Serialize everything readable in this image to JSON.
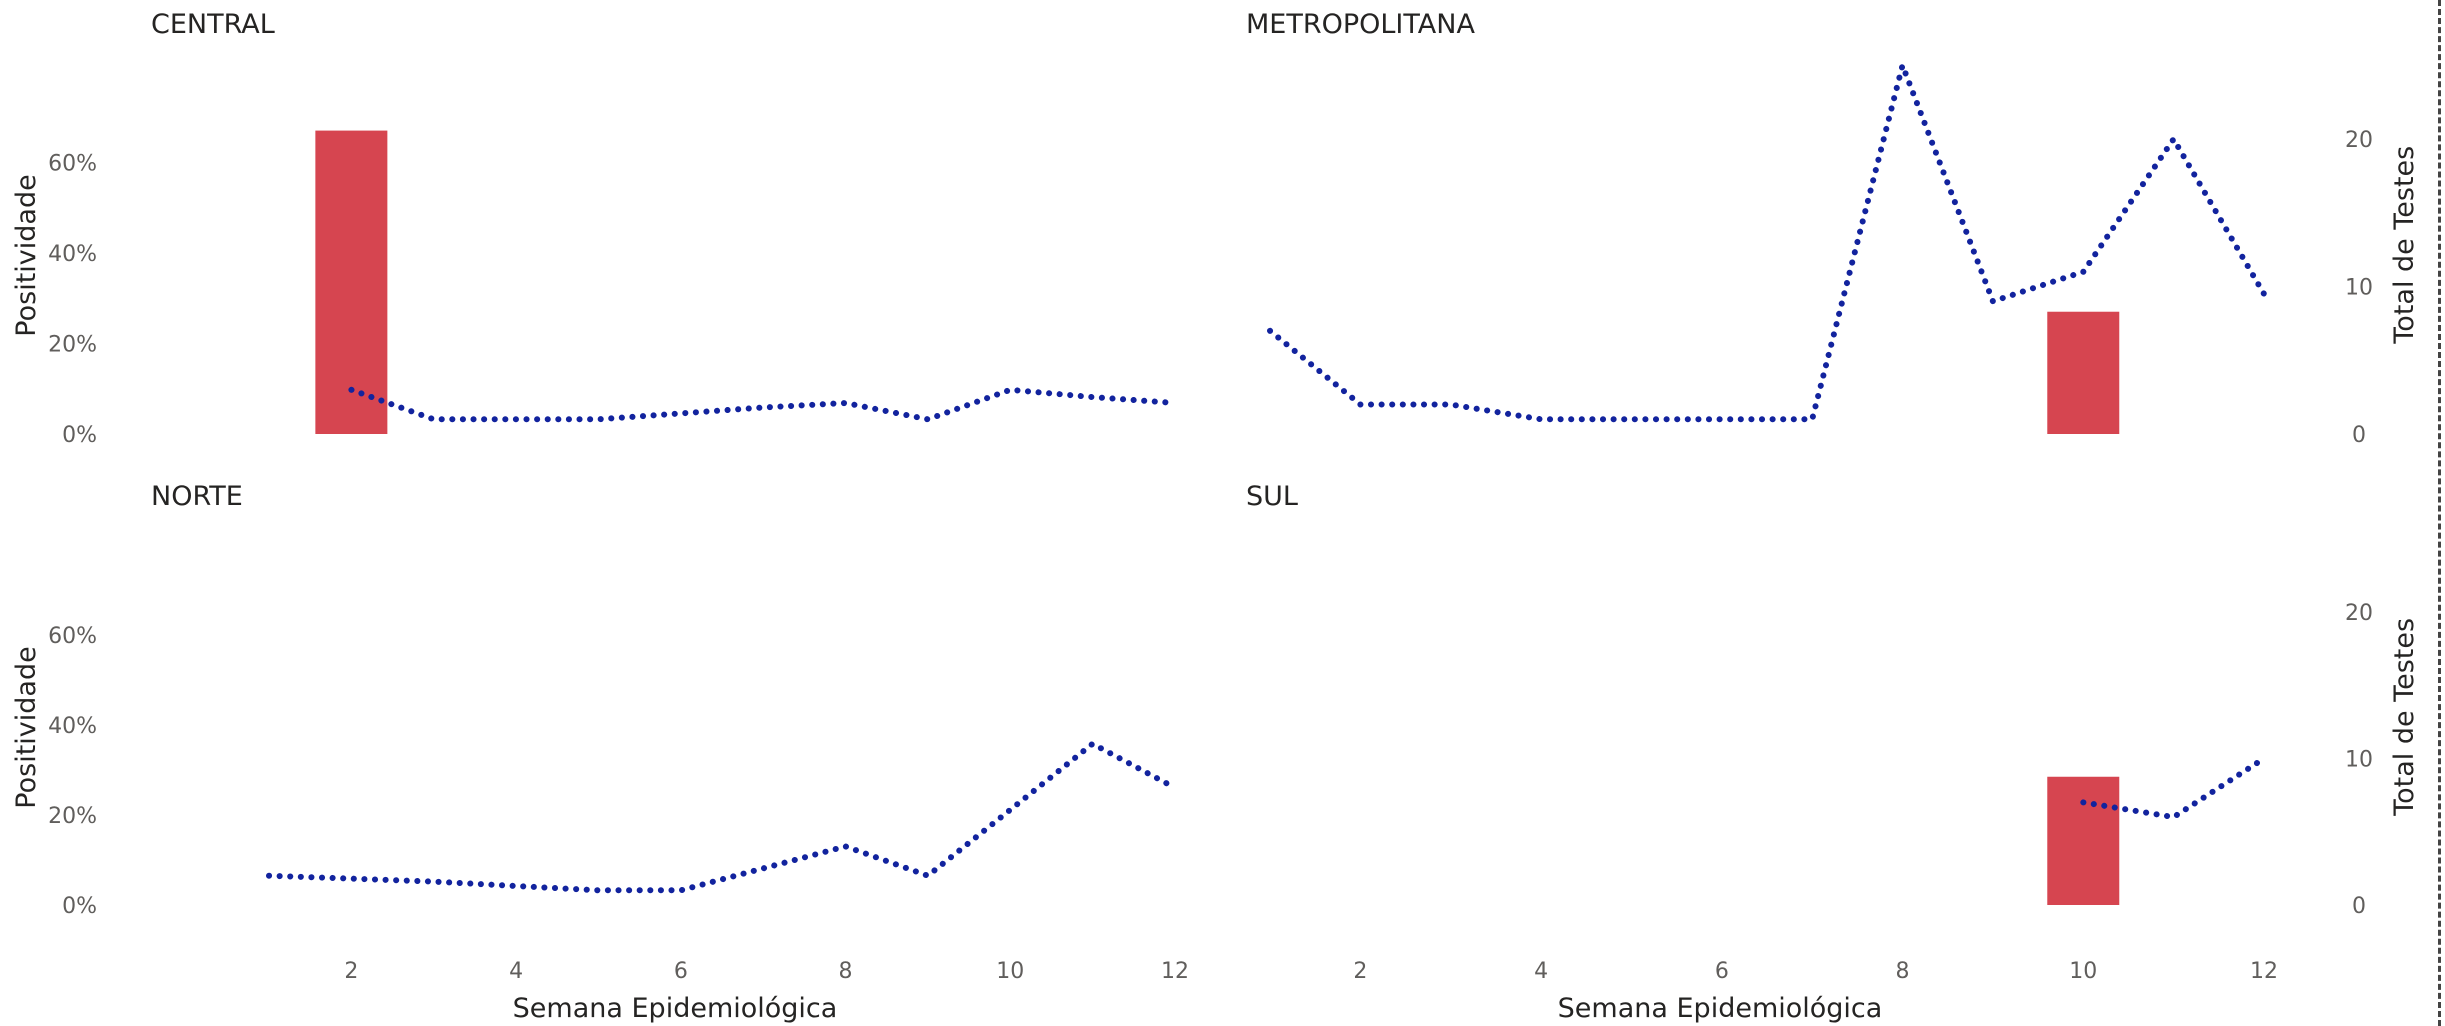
{
  "chart_data": {
    "type": "bar",
    "xlabel": "Semana Epidemiológica",
    "ylabel_left": "Positividade",
    "ylabel_right": "Total de Testes",
    "x_ticks": [
      "2",
      "4",
      "6",
      "8",
      "10",
      "12"
    ],
    "x_range": [
      1,
      12
    ],
    "y_left_range": [
      0,
      70
    ],
    "y_left_ticks": [
      "0%",
      "20%",
      "40%",
      "60%"
    ],
    "y_right_range": [
      0,
      25
    ],
    "y_right_ticks": [
      "0",
      "10",
      "20"
    ],
    "grid": false,
    "bar_color": "#d64550",
    "line_color": "#12239e",
    "panels": [
      {
        "title": "CENTRAL",
        "bars": [
          {
            "x": 2,
            "positividade": 67
          }
        ],
        "line": [
          [
            2,
            3
          ],
          [
            3,
            1
          ],
          [
            4,
            1
          ],
          [
            5,
            1
          ],
          [
            6,
            1.4
          ],
          [
            7,
            1.8
          ],
          [
            8,
            2.1
          ],
          [
            9,
            1
          ],
          [
            10,
            3
          ],
          [
            11,
            2.5
          ],
          [
            12,
            2.1
          ]
        ]
      },
      {
        "title": "METROPOLITANA",
        "bars": [
          {
            "x": 10,
            "positividade": 27
          }
        ],
        "line": [
          [
            1,
            7
          ],
          [
            2,
            2
          ],
          [
            3,
            2
          ],
          [
            4,
            1
          ],
          [
            5,
            1
          ],
          [
            6,
            1
          ],
          [
            7,
            1
          ],
          [
            8,
            25
          ],
          [
            9,
            9
          ],
          [
            10,
            11
          ],
          [
            11,
            20
          ],
          [
            12,
            9.5
          ]
        ]
      },
      {
        "title": "NORTE",
        "bars": [],
        "line": [
          [
            1,
            2
          ],
          [
            2,
            1.8
          ],
          [
            3,
            1.6
          ],
          [
            4,
            1.3
          ],
          [
            5,
            1
          ],
          [
            6,
            1
          ],
          [
            7,
            2.5
          ],
          [
            8,
            4
          ],
          [
            9,
            2
          ],
          [
            10,
            6.5
          ],
          [
            11,
            11
          ],
          [
            12,
            8
          ]
        ]
      },
      {
        "title": "SUL",
        "bars": [
          {
            "x": 10,
            "positividade": 28.5
          }
        ],
        "line": [
          [
            10,
            7
          ],
          [
            11,
            6
          ],
          [
            12,
            10
          ]
        ]
      }
    ]
  }
}
